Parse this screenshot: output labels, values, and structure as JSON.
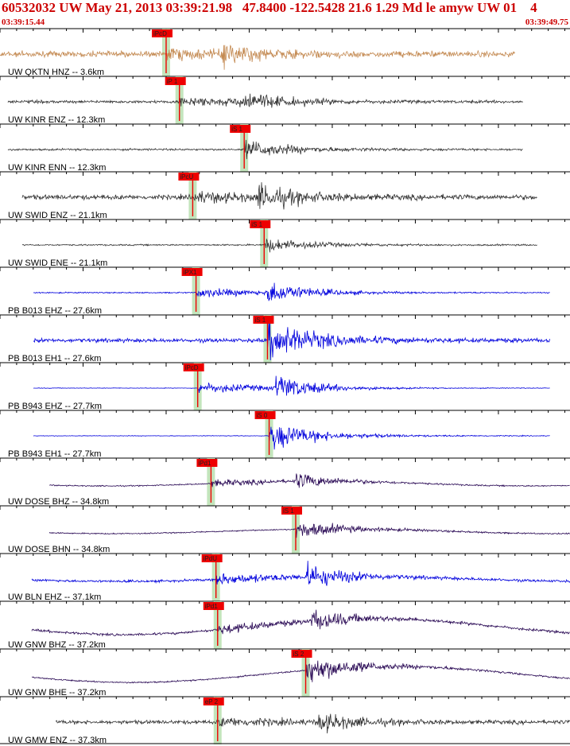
{
  "header": {
    "title": "60532032 UW May 21, 2013 03:39:21.98   47.8400 -122.5428 21.6 1.29 Md le amyw UW 01    4",
    "time_start": "03:39:15.44",
    "time_end": "03:39:49.75"
  },
  "colors": {
    "header_red": "#cc0000",
    "pick_red": "#ee0000",
    "window_green": "#b8e0b0",
    "tan": "#c48a52",
    "dark": "#333333",
    "blue": "#0000dd",
    "navy": "#2a0a55"
  },
  "chart_data": {
    "type": "line",
    "title": "60532032 UW May 21, 2013 03:39:21.98   47.8400 -122.5428 21.6 1.29 Md le amyw UW 01    4",
    "xlabel": "",
    "ylabel": "",
    "xlim": [
      "03:39:15.44",
      "03:39:49.75"
    ],
    "grid": false,
    "traces": [
      {
        "name": "UW QKTN HNZ -- 3.6km",
        "color": "tan",
        "picks": [
          {
            "label": "iPcD",
            "time_s": 10.0
          }
        ]
      },
      {
        "name": "UW KINR ENZ -- 12.3km",
        "color": "dark",
        "picks": [
          {
            "label": "iP 1",
            "time_s": 10.8
          }
        ]
      },
      {
        "name": "UW KINR ENN -- 12.3km",
        "color": "dark",
        "picks": [
          {
            "label": "iS 1",
            "time_s": 14.7
          }
        ]
      },
      {
        "name": "UW SWID ENZ -- 21.1km",
        "color": "dark",
        "picks": [
          {
            "label": "iPcU",
            "time_s": 11.6
          }
        ]
      },
      {
        "name": "UW SWID ENE -- 21.1km",
        "color": "dark",
        "picks": [
          {
            "label": "iS 1",
            "time_s": 15.9
          }
        ]
      },
      {
        "name": "PB B013 EHZ -- 27.6km",
        "color": "blue",
        "picks": [
          {
            "label": "iPX1",
            "time_s": 11.8
          }
        ]
      },
      {
        "name": "PB B013 EH1 -- 27.6km",
        "color": "blue",
        "picks": [
          {
            "label": "iS 1",
            "time_s": 16.1
          }
        ]
      },
      {
        "name": "PB B943 EHZ -- 27.7km",
        "color": "blue",
        "picks": [
          {
            "label": "iPcD",
            "time_s": 11.9
          }
        ]
      },
      {
        "name": "PB B943 EH1 -- 27.7km",
        "color": "blue",
        "picks": [
          {
            "label": "iS 0",
            "time_s": 16.2
          }
        ]
      },
      {
        "name": "UW DOSE BHZ -- 34.8km",
        "color": "navy",
        "picks": [
          {
            "label": "iPd1",
            "time_s": 12.7
          }
        ]
      },
      {
        "name": "UW DOSE BHN -- 34.8km",
        "color": "navy",
        "picks": [
          {
            "label": "iS 1",
            "time_s": 17.8
          }
        ]
      },
      {
        "name": "UW BLN EHZ -- 37.1km",
        "color": "blue",
        "picks": [
          {
            "label": "iPdU",
            "time_s": 13.0
          }
        ]
      },
      {
        "name": "UW GNW BHZ -- 37.2km",
        "color": "navy",
        "picks": [
          {
            "label": "iPd1",
            "time_s": 13.1
          }
        ]
      },
      {
        "name": "UW GNW BHE -- 37.2km",
        "color": "navy",
        "picks": [
          {
            "label": "iS 2",
            "time_s": 18.4
          }
        ]
      },
      {
        "name": "UW GMW ENZ -- 37.3km",
        "color": "dark",
        "picks": [
          {
            "label": "eP 2",
            "time_s": 13.1
          }
        ]
      }
    ]
  }
}
